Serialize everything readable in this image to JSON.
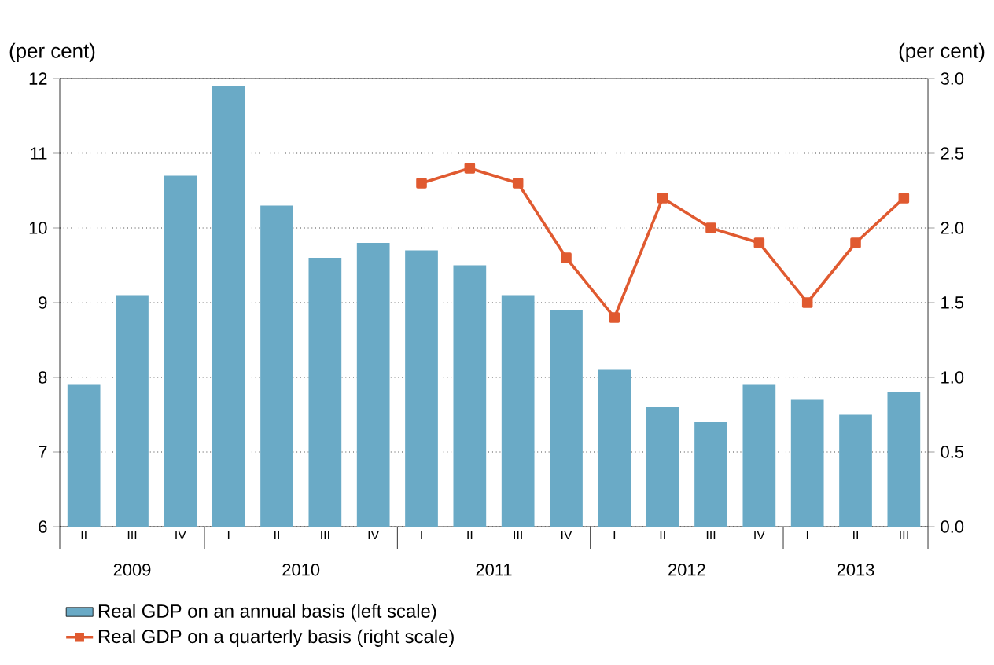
{
  "chart_data": {
    "type": "bar",
    "ylabel": "(per cent)",
    "y2label": "(per cent)",
    "categories": [
      "II",
      "III",
      "IV",
      "I",
      "II",
      "III",
      "IV",
      "I",
      "II",
      "III",
      "IV",
      "I",
      "II",
      "III",
      "IV",
      "I",
      "II",
      "III"
    ],
    "series": [
      {
        "name": "Real GDP on an annual basis (left scale)",
        "color": "#6aaac6",
        "values": [
          7.9,
          9.1,
          10.7,
          11.9,
          10.3,
          9.6,
          9.8,
          9.7,
          9.5,
          9.1,
          8.9,
          8.1,
          7.6,
          7.4,
          7.9,
          7.7,
          7.5,
          7.8
        ]
      },
      {
        "name": "Real GDP on a quarterly basis (right scale)",
        "type": "line",
        "axis": "y2",
        "color": "#e05a30",
        "values": [
          null,
          null,
          null,
          null,
          null,
          null,
          null,
          2.3,
          2.4,
          2.3,
          1.8,
          1.4,
          2.2,
          2.0,
          1.9,
          1.5,
          1.9,
          2.2
        ]
      }
    ],
    "ylim": [
      6,
      12
    ],
    "yticks": [
      6,
      7,
      8,
      9,
      10,
      11,
      12
    ],
    "y2lim": [
      0,
      3
    ],
    "y2ticks": [
      {
        "value": 0,
        "label": "0.0"
      },
      {
        "value": 0.5,
        "label": "0.5"
      },
      {
        "value": 1,
        "label": "1.0"
      },
      {
        "value": 1.5,
        "label": "1.5"
      },
      {
        "value": 2,
        "label": "2.0"
      },
      {
        "value": 2.5,
        "label": "2.5"
      },
      {
        "value": 3,
        "label": "3.0"
      }
    ],
    "annotations": [
      "2009",
      "2010",
      "2011",
      "2012",
      "2013"
    ],
    "grid": "y",
    "legend": "bottom",
    "marker": "square",
    "line_style": "solid"
  }
}
